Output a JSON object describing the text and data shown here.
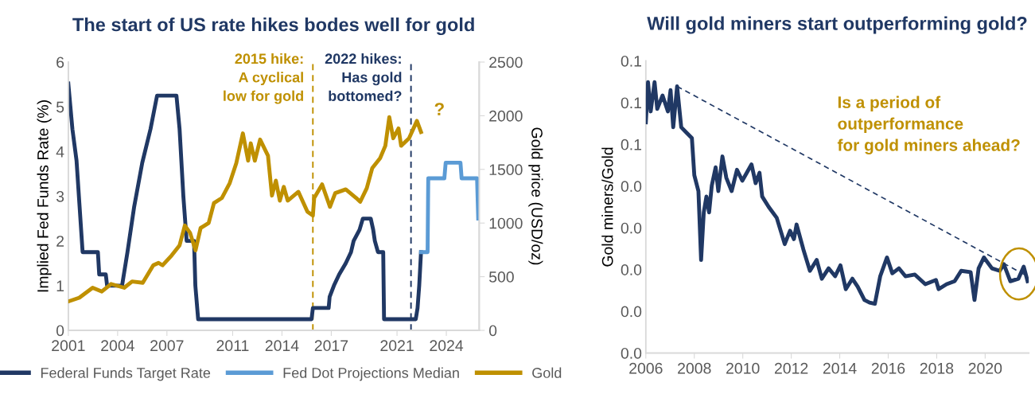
{
  "chart_data": [
    {
      "type": "line",
      "title": "The start of US rate hikes bodes well for gold",
      "ylabel": "Implied Fed Funds Rate (%)",
      "y2label": "Gold price (USD/oz)",
      "xlim": [
        2001,
        2026.0
      ],
      "xticks": [
        2001,
        2004,
        2007,
        2011,
        2014,
        2017,
        2021,
        2024
      ],
      "ylim": [
        0,
        6
      ],
      "yticks": [
        0,
        1,
        2,
        3,
        4,
        5,
        6
      ],
      "y2lim": [
        0,
        2500
      ],
      "y2ticks": [
        0,
        500,
        1000,
        1500,
        2000,
        2500
      ],
      "grid": false,
      "legend": "bottom",
      "marker": "none",
      "line_style": "solid",
      "series": [
        {
          "name": "Federal Funds Target Rate",
          "color": "#203864",
          "x": [
            2001.0,
            2001.25,
            2001.5,
            2001.87,
            2002.8,
            2002.88,
            2003.28,
            2003.36,
            2004.27,
            2004.6,
            2005.0,
            2005.5,
            2006.0,
            2006.4,
            2007.58,
            2007.77,
            2008.0,
            2008.2,
            2008.65,
            2008.73,
            2008.9,
            2015.8,
            2015.88,
            2016.84,
            2016.9,
            2017.16,
            2017.48,
            2017.88,
            2018.2,
            2018.36,
            2018.72,
            2018.92,
            2019.4,
            2019.55,
            2019.65,
            2019.84,
            2020.16,
            2020.21,
            2022.14,
            2022.25,
            2022.35,
            2022.46
          ],
          "values": [
            5.52,
            4.5,
            3.8,
            1.75,
            1.75,
            1.25,
            1.25,
            1.0,
            1.0,
            1.75,
            2.75,
            3.75,
            4.5,
            5.25,
            5.25,
            4.5,
            3.0,
            2.0,
            2.0,
            1.0,
            0.25,
            0.25,
            0.5,
            0.5,
            0.75,
            1.0,
            1.25,
            1.5,
            1.75,
            2.0,
            2.25,
            2.5,
            2.5,
            2.25,
            2.0,
            1.75,
            1.75,
            0.25,
            0.25,
            0.5,
            1.0,
            1.75
          ]
        },
        {
          "name": "Fed Dot Projections Median",
          "color": "#5b9bd5",
          "x": [
            2022.46,
            2022.86,
            2022.9,
            2023.88,
            2023.96,
            2024.86,
            2024.93,
            2025.87,
            2025.94
          ],
          "values": [
            1.75,
            1.75,
            3.4,
            3.4,
            3.75,
            3.75,
            3.4,
            3.4,
            2.5
          ]
        },
        {
          "name": "Gold",
          "color": "#bf9000",
          "axis": "y2",
          "x": [
            2001.0,
            2001.67,
            2002.48,
            2003.04,
            2003.6,
            2004.4,
            2004.88,
            2005.53,
            2006.17,
            2006.49,
            2006.73,
            2007.29,
            2007.77,
            2008.09,
            2008.41,
            2008.74,
            2009.05,
            2009.54,
            2009.86,
            2010.34,
            2010.82,
            2011.22,
            2011.62,
            2011.94,
            2012.1,
            2012.35,
            2012.67,
            2013.15,
            2013.39,
            2013.63,
            2013.87,
            2014.11,
            2014.35,
            2015.0,
            2015.55,
            2015.88,
            2015.96,
            2016.44,
            2016.92,
            2017.24,
            2017.88,
            2018.52,
            2018.76,
            2019.16,
            2019.49,
            2019.97,
            2020.29,
            2020.53,
            2020.77,
            2021.09,
            2021.25,
            2021.73,
            2022.21,
            2022.46
          ],
          "values": [
            269,
            304,
            397,
            362,
            432,
            397,
            455,
            443,
            606,
            629,
            606,
            699,
            792,
            977,
            908,
            745,
            954,
            1001,
            1186,
            1233,
            1372,
            1558,
            1836,
            1581,
            1743,
            1581,
            1778,
            1627,
            1256,
            1395,
            1209,
            1337,
            1209,
            1291,
            1105,
            1070,
            1233,
            1360,
            1151,
            1279,
            1314,
            1233,
            1198,
            1325,
            1511,
            1604,
            1720,
            1987,
            1790,
            1882,
            1720,
            1790,
            1952,
            1848
          ]
        }
      ],
      "ref_lines": [
        {
          "axis": "x",
          "value": 2015.88,
          "label": "2015 hike:\nA cyclical\nlow for gold",
          "color": "#bf9000",
          "line_style": "dashed"
        },
        {
          "axis": "x",
          "value": 2021.85,
          "label": "2022 hikes:\nHas gold\nbottomed?",
          "color": "#203864",
          "line_style": "dashed"
        }
      ],
      "annotations": [
        "?"
      ]
    },
    {
      "type": "line",
      "title": "Will gold miners start outperforming gold?",
      "ylabel": "Gold miners/Gold",
      "xlim": [
        2006,
        2021.8
      ],
      "xticks": [
        2006,
        2008,
        2010,
        2012,
        2014,
        2016,
        2018,
        2020
      ],
      "ylim": [
        0,
        0.07
      ],
      "yticks": [
        {
          "value": 0,
          "label": "0.0"
        },
        {
          "value": 0.01,
          "label": "0.0"
        },
        {
          "value": 0.02,
          "label": "0.0"
        },
        {
          "value": 0.03,
          "label": "0.0"
        },
        {
          "value": 0.04,
          "label": "0.0"
        },
        {
          "value": 0.05,
          "label": "0.1"
        },
        {
          "value": 0.06,
          "label": "0.1"
        },
        {
          "value": 0.07,
          "label": "0.1"
        }
      ],
      "grid": false,
      "legend": false,
      "marker": "none",
      "series": [
        {
          "color": "#203864",
          "line_style": "solid",
          "x": [
            2006.0,
            2006.09,
            2006.2,
            2006.36,
            2006.47,
            2006.69,
            2006.91,
            2007.02,
            2007.13,
            2007.29,
            2007.46,
            2007.68,
            2007.9,
            2008.0,
            2008.17,
            2008.28,
            2008.39,
            2008.5,
            2008.61,
            2008.72,
            2008.88,
            2008.99,
            2009.16,
            2009.32,
            2009.54,
            2009.76,
            2009.98,
            2010.36,
            2010.53,
            2010.69,
            2010.8,
            2011.07,
            2011.4,
            2011.73,
            2011.95,
            2012.11,
            2012.22,
            2012.5,
            2012.77,
            2013.05,
            2013.26,
            2013.54,
            2013.81,
            2014.03,
            2014.25,
            2014.52,
            2014.74,
            2015.02,
            2015.23,
            2015.45,
            2015.67,
            2015.95,
            2016.17,
            2016.44,
            2016.71,
            2017.1,
            2017.53,
            2017.97,
            2018.08,
            2018.41,
            2018.74,
            2019.01,
            2019.4,
            2019.56,
            2019.73,
            2019.95,
            2020.28,
            2020.6,
            2020.77,
            2021.04,
            2021.37,
            2021.59,
            2021.75
          ],
          "values": [
            0.0553,
            0.0649,
            0.0579,
            0.0649,
            0.0585,
            0.0617,
            0.0579,
            0.063,
            0.0541,
            0.0639,
            0.0541,
            0.0528,
            0.0515,
            0.0426,
            0.0388,
            0.0223,
            0.0337,
            0.0375,
            0.0337,
            0.0401,
            0.0445,
            0.0388,
            0.0471,
            0.042,
            0.0388,
            0.0439,
            0.0413,
            0.0452,
            0.0407,
            0.0432,
            0.0375,
            0.035,
            0.0324,
            0.0261,
            0.0293,
            0.0273,
            0.0308,
            0.0248,
            0.0197,
            0.0223,
            0.0178,
            0.0203,
            0.0184,
            0.021,
            0.0153,
            0.0178,
            0.0159,
            0.0127,
            0.0121,
            0.0118,
            0.0184,
            0.0229,
            0.0191,
            0.0203,
            0.0184,
            0.0188,
            0.0165,
            0.0175,
            0.0153,
            0.0165,
            0.0172,
            0.0197,
            0.0194,
            0.0127,
            0.0203,
            0.0229,
            0.0203,
            0.0197,
            0.0213,
            0.0172,
            0.0178,
            0.0207,
            0.0172
          ]
        },
        {
          "color": "#203864",
          "line_style": "dashed",
          "x": [
            2007.29,
            2021.75
          ],
          "values": [
            0.0639,
            0.0184
          ]
        }
      ],
      "annotations": [
        "Is a period of\noutperformance\nfor gold miners ahead?"
      ]
    }
  ]
}
